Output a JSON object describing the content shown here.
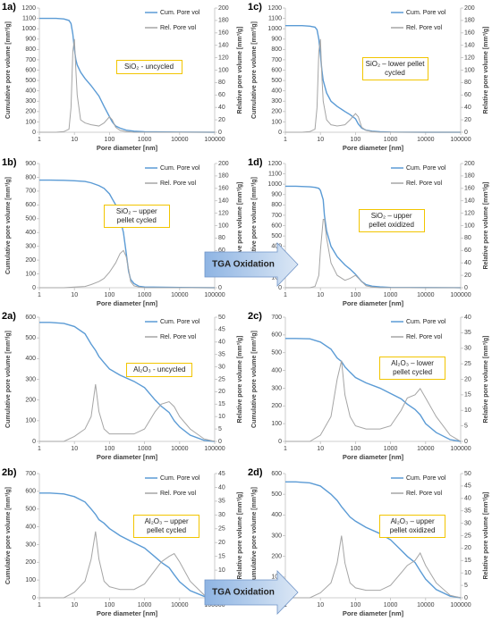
{
  "chart_data": [
    {
      "type": "line",
      "panel": "1a)",
      "annotation": "SiO₂ - uncycled",
      "x_label": "Pore diameter [nm]",
      "y_label": "Cumulative pore volume [mm³/g]",
      "y2_label": "Relative pore volume [mm³/g]",
      "xscale": "log",
      "xlim": [
        1,
        100000
      ],
      "xticks": [
        1,
        10,
        100,
        1000,
        10000,
        100000
      ],
      "ylim": [
        0,
        1200
      ],
      "yticks": [
        0,
        100,
        200,
        300,
        400,
        500,
        600,
        700,
        800,
        900,
        1000,
        1100,
        1200
      ],
      "y2lim": [
        0,
        200
      ],
      "y2ticks": [
        0,
        20,
        40,
        60,
        80,
        100,
        120,
        140,
        160,
        180,
        200
      ],
      "x": [
        1,
        2,
        3,
        5,
        7,
        8,
        9,
        10,
        11,
        12,
        15,
        20,
        30,
        50,
        70,
        100,
        120,
        150,
        200,
        300,
        500,
        1000,
        10000,
        100000
      ],
      "series": [
        {
          "name": "Cum. Pore vol",
          "color": "#5b9bd5",
          "values": [
            1100,
            1100,
            1100,
            1095,
            1080,
            1050,
            950,
            800,
            700,
            650,
            580,
            520,
            450,
            350,
            250,
            150,
            100,
            60,
            40,
            20,
            10,
            5,
            2,
            0
          ]
        },
        {
          "name": "Rel. Pore vol",
          "color": "#a5a5a5",
          "axis": "y2",
          "values": [
            0,
            0,
            0,
            1,
            5,
            40,
            130,
            150,
            100,
            60,
            20,
            15,
            12,
            10,
            15,
            25,
            20,
            8,
            3,
            1,
            0,
            0,
            0,
            0
          ]
        }
      ]
    },
    {
      "type": "line",
      "panel": "1c)",
      "annotation": "SiO₂ – lower pellet cycled",
      "x_label": "Pore diameter [nm]",
      "y_label": "Cumulative pore volume [mm³/g]",
      "y2_label": "Relative pore volume [mm³/g]",
      "xscale": "log",
      "xlim": [
        1,
        100000
      ],
      "xticks": [
        1,
        10,
        100,
        1000,
        10000,
        100000
      ],
      "ylim": [
        0,
        1200
      ],
      "yticks": [
        0,
        100,
        200,
        300,
        400,
        500,
        600,
        700,
        800,
        900,
        1000,
        1100,
        1200
      ],
      "y2lim": [
        0,
        200
      ],
      "y2ticks": [
        0,
        20,
        40,
        60,
        80,
        100,
        120,
        140,
        160,
        180,
        200
      ],
      "x": [
        1,
        2,
        3,
        5,
        7,
        8,
        9,
        10,
        11,
        12,
        15,
        20,
        30,
        50,
        70,
        100,
        120,
        150,
        200,
        300,
        500,
        1000,
        10000,
        100000
      ],
      "series": [
        {
          "name": "Cum. Pore vol",
          "color": "#5b9bd5",
          "values": [
            1030,
            1030,
            1030,
            1025,
            1015,
            990,
            900,
            750,
            600,
            500,
            380,
            300,
            250,
            200,
            170,
            130,
            80,
            40,
            20,
            10,
            5,
            2,
            0,
            0
          ]
        },
        {
          "name": "Rel. Pore vol",
          "color": "#a5a5a5",
          "axis": "y2",
          "values": [
            0,
            0,
            0,
            1,
            5,
            40,
            130,
            150,
            90,
            50,
            20,
            12,
            10,
            12,
            20,
            30,
            25,
            8,
            3,
            1,
            0,
            0,
            0,
            0
          ]
        }
      ]
    },
    {
      "type": "line",
      "panel": "1b)",
      "annotation": "SiO₂ – upper pellet cycled",
      "x_label": "Pore diameter [nm]",
      "y_label": "Cumulative pore volume [mm³/g]",
      "y2_label": "Relative pore volume [mm³/g]",
      "xscale": "log",
      "xlim": [
        1,
        100000
      ],
      "xticks": [
        1,
        10,
        100,
        1000,
        10000,
        100000
      ],
      "ylim": [
        0,
        900
      ],
      "yticks": [
        0,
        100,
        200,
        300,
        400,
        500,
        600,
        700,
        800,
        900
      ],
      "y2lim": [
        0,
        200
      ],
      "y2ticks": [
        0,
        20,
        40,
        60,
        80,
        100,
        120,
        140,
        160,
        180,
        200
      ],
      "x": [
        1,
        2,
        5,
        10,
        20,
        30,
        50,
        70,
        100,
        150,
        200,
        250,
        300,
        350,
        400,
        500,
        700,
        1000,
        10000,
        100000
      ],
      "series": [
        {
          "name": "Cum. Pore vol",
          "color": "#5b9bd5",
          "values": [
            780,
            780,
            778,
            775,
            770,
            760,
            740,
            720,
            680,
            600,
            500,
            400,
            250,
            120,
            60,
            30,
            10,
            5,
            2,
            0
          ]
        },
        {
          "name": "Rel. Pore vol",
          "color": "#a5a5a5",
          "axis": "y2",
          "values": [
            0,
            0,
            0,
            1,
            2,
            5,
            10,
            15,
            25,
            40,
            55,
            60,
            50,
            30,
            10,
            3,
            1,
            0,
            0,
            0
          ]
        }
      ]
    },
    {
      "type": "line",
      "panel": "1d)",
      "annotation": "SiO₂ – upper pellet oxidized",
      "x_label": "Pore diameter [nm]",
      "y_label": "Cumulative pore volume [mm³/g]",
      "y2_label": "Relative pore volume [mm³/g]",
      "xscale": "log",
      "xlim": [
        1,
        100000
      ],
      "xticks": [
        1,
        10,
        100,
        1000,
        10000,
        100000
      ],
      "ylim": [
        0,
        1200
      ],
      "yticks": [
        0,
        100,
        200,
        300,
        400,
        500,
        600,
        700,
        800,
        900,
        1000,
        1100,
        1200
      ],
      "y2lim": [
        0,
        200
      ],
      "y2ticks": [
        0,
        20,
        40,
        60,
        80,
        100,
        120,
        140,
        160,
        180,
        200
      ],
      "x": [
        1,
        2,
        5,
        7,
        9,
        10,
        12,
        13,
        15,
        20,
        30,
        50,
        70,
        100,
        150,
        200,
        300,
        500,
        1000,
        10000,
        100000
      ],
      "series": [
        {
          "name": "Cum. Pore vol",
          "color": "#5b9bd5",
          "values": [
            980,
            980,
            975,
            970,
            960,
            940,
            850,
            700,
            550,
            400,
            300,
            220,
            180,
            130,
            60,
            30,
            15,
            8,
            3,
            1,
            0
          ]
        },
        {
          "name": "Rel. Pore vol",
          "color": "#a5a5a5",
          "axis": "y2",
          "values": [
            0,
            0,
            0,
            2,
            20,
            60,
            110,
            110,
            80,
            40,
            20,
            12,
            15,
            20,
            10,
            3,
            1,
            0,
            0,
            0,
            0
          ]
        }
      ]
    },
    {
      "type": "line",
      "panel": "2a)",
      "annotation": "Al₂O₃ - uncycled",
      "x_label": "Pore diameter [nm]",
      "y_label": "Cumulative pore volume [mm³/g]",
      "y2_label": "Relative pore volume [mm³/g]",
      "xscale": "log",
      "xlim": [
        1,
        100000
      ],
      "xticks": [
        1,
        10,
        100,
        1000,
        10000,
        100000
      ],
      "ylim": [
        0,
        600
      ],
      "yticks": [
        0,
        100,
        200,
        300,
        400,
        500,
        600
      ],
      "y2lim": [
        0,
        50
      ],
      "y2ticks": [
        0,
        5,
        10,
        15,
        20,
        25,
        30,
        35,
        40,
        45,
        50
      ],
      "x": [
        1,
        2,
        5,
        10,
        20,
        30,
        40,
        50,
        70,
        100,
        200,
        500,
        1000,
        2000,
        3000,
        5000,
        7000,
        10000,
        20000,
        50000,
        100000
      ],
      "series": [
        {
          "name": "Cum. Pore vol",
          "color": "#5b9bd5",
          "values": [
            575,
            575,
            570,
            555,
            520,
            470,
            440,
            410,
            380,
            350,
            320,
            290,
            260,
            200,
            170,
            140,
            100,
            70,
            30,
            5,
            0
          ]
        },
        {
          "name": "Rel. Pore vol",
          "color": "#a5a5a5",
          "axis": "y2",
          "values": [
            0,
            0,
            0,
            2,
            5,
            10,
            23,
            12,
            5,
            3,
            3,
            3,
            5,
            12,
            15,
            16,
            14,
            10,
            5,
            1,
            0
          ]
        }
      ]
    },
    {
      "type": "line",
      "panel": "2c)",
      "annotation": "Al₂O₃ – lower pellet cycled",
      "x_label": "Pore diameter [nm]",
      "y_label": "Cumulative pore volume [mm³/g]",
      "y2_label": "Relative pore volume [mm³/g]",
      "xscale": "log",
      "xlim": [
        1,
        100000
      ],
      "xticks": [
        1,
        10,
        100,
        1000,
        10000,
        100000
      ],
      "ylim": [
        0,
        700
      ],
      "yticks": [
        0,
        100,
        200,
        300,
        400,
        500,
        600,
        700
      ],
      "y2lim": [
        0,
        40
      ],
      "y2ticks": [
        0,
        5,
        10,
        15,
        20,
        25,
        30,
        35,
        40
      ],
      "x": [
        1,
        2,
        5,
        10,
        20,
        30,
        40,
        50,
        70,
        100,
        200,
        500,
        1000,
        2000,
        3000,
        5000,
        7000,
        10000,
        20000,
        50000,
        100000
      ],
      "series": [
        {
          "name": "Cum. Pore vol",
          "color": "#5b9bd5",
          "values": [
            580,
            580,
            578,
            560,
            520,
            470,
            450,
            420,
            390,
            360,
            330,
            300,
            270,
            240,
            210,
            180,
            150,
            100,
            50,
            10,
            0
          ]
        },
        {
          "name": "Rel. Pore vol",
          "color": "#a5a5a5",
          "axis": "y2",
          "values": [
            0,
            0,
            0,
            2,
            8,
            20,
            26,
            15,
            8,
            5,
            4,
            4,
            5,
            10,
            14,
            15,
            17,
            14,
            8,
            2,
            0
          ]
        }
      ]
    },
    {
      "type": "line",
      "panel": "2b)",
      "annotation": "Al₂O₃ – upper pellet cycled",
      "x_label": "Pore diameter [nm]",
      "y_label": "Cumulative pore volume [mm³/g]",
      "y2_label": "Relative pore volume [mm³/g]",
      "xscale": "log",
      "xlim": [
        1,
        100000
      ],
      "xticks": [
        1,
        10,
        100,
        1000,
        10000,
        100000
      ],
      "ylim": [
        0,
        700
      ],
      "yticks": [
        0,
        100,
        200,
        300,
        400,
        500,
        600,
        700
      ],
      "y2lim": [
        0,
        45
      ],
      "y2ticks": [
        0,
        5,
        10,
        15,
        20,
        25,
        30,
        35,
        40,
        45
      ],
      "x": [
        1,
        2,
        5,
        10,
        20,
        30,
        40,
        50,
        70,
        100,
        200,
        500,
        1000,
        2000,
        3000,
        5000,
        7000,
        10000,
        20000,
        50000,
        100000
      ],
      "series": [
        {
          "name": "Cum. Pore vol",
          "color": "#5b9bd5",
          "values": [
            590,
            590,
            585,
            570,
            540,
            500,
            470,
            440,
            420,
            390,
            350,
            310,
            280,
            230,
            200,
            170,
            130,
            90,
            40,
            8,
            0
          ]
        },
        {
          "name": "Rel. Pore vol",
          "color": "#a5a5a5",
          "axis": "y2",
          "values": [
            0,
            0,
            0,
            2,
            6,
            14,
            24,
            14,
            6,
            4,
            3,
            3,
            5,
            10,
            13,
            15,
            16,
            13,
            6,
            1,
            0
          ]
        }
      ]
    },
    {
      "type": "line",
      "panel": "2d)",
      "annotation": "Al₂O₃ – upper pellet oxidized",
      "x_label": "Pore diameter [nm]",
      "y_label": "Cumulative pore volume [mm³/g]",
      "y2_label": "Relative pore volume [mm³/g]",
      "xscale": "log",
      "xlim": [
        1,
        100000
      ],
      "xticks": [
        1,
        10,
        100,
        1000,
        10000,
        100000
      ],
      "ylim": [
        0,
        600
      ],
      "yticks": [
        0,
        100,
        200,
        300,
        400,
        500,
        600
      ],
      "y2lim": [
        0,
        50
      ],
      "y2ticks": [
        0,
        5,
        10,
        15,
        20,
        25,
        30,
        35,
        40,
        45,
        50
      ],
      "x": [
        1,
        2,
        5,
        10,
        20,
        30,
        40,
        50,
        70,
        100,
        200,
        500,
        1000,
        2000,
        3000,
        5000,
        7000,
        10000,
        20000,
        50000,
        100000
      ],
      "series": [
        {
          "name": "Cum. Pore vol",
          "color": "#5b9bd5",
          "values": [
            560,
            560,
            555,
            540,
            500,
            470,
            440,
            420,
            390,
            370,
            340,
            310,
            280,
            230,
            200,
            170,
            130,
            90,
            40,
            8,
            0
          ]
        },
        {
          "name": "Rel. Pore vol",
          "color": "#a5a5a5",
          "axis": "y2",
          "values": [
            0,
            0,
            0,
            2,
            6,
            14,
            25,
            14,
            6,
            4,
            3,
            3,
            5,
            10,
            13,
            15,
            18,
            13,
            6,
            1,
            0
          ]
        }
      ]
    }
  ],
  "arrows": [
    {
      "label": "TGA Oxidation"
    },
    {
      "label": "TGA Oxidation"
    }
  ]
}
